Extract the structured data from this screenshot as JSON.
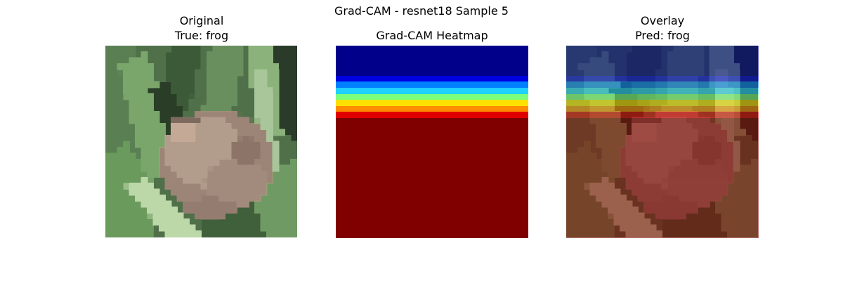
{
  "figure": {
    "suptitle": "Grad-CAM - resnet18 Sample 5"
  },
  "panels": {
    "original": {
      "title_line1": "Original",
      "title_line2": "True: frog"
    },
    "heatmap": {
      "title": "Grad-CAM Heatmap",
      "colormap": "jet"
    },
    "overlay": {
      "title_line1": "Overlay",
      "title_line2": "Pred: frog"
    }
  },
  "colors": {
    "frog": "#a08878",
    "grass_light": "#6e9a62",
    "grass_dark": "#2e4a2a",
    "jet_dark_red": "#800000",
    "jet_dark_blue": "#00008b"
  }
}
